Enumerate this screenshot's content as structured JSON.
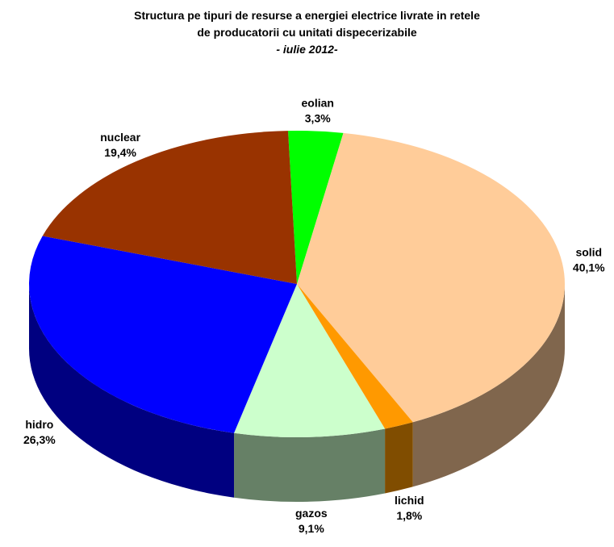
{
  "chart_data": {
    "type": "pie",
    "title": "Structura pe tipuri de resurse a energiei electrice livrate in retele de producatorii cu unitati dispecerizabile",
    "subtitle": "- iulie 2012-",
    "categories": [
      "eolian",
      "solid",
      "lichid",
      "gazos",
      "hidro",
      "nuclear"
    ],
    "values": [
      3.3,
      40.1,
      1.8,
      9.1,
      26.3,
      19.4
    ],
    "value_labels": [
      "3,3%",
      "40,1%",
      "1,8%",
      "9,1%",
      "26,3%",
      "19,4%"
    ],
    "colors": [
      "#00ff00",
      "#ffcc99",
      "#ff9900",
      "#ccffcc",
      "#0000ff",
      "#993300"
    ]
  }
}
